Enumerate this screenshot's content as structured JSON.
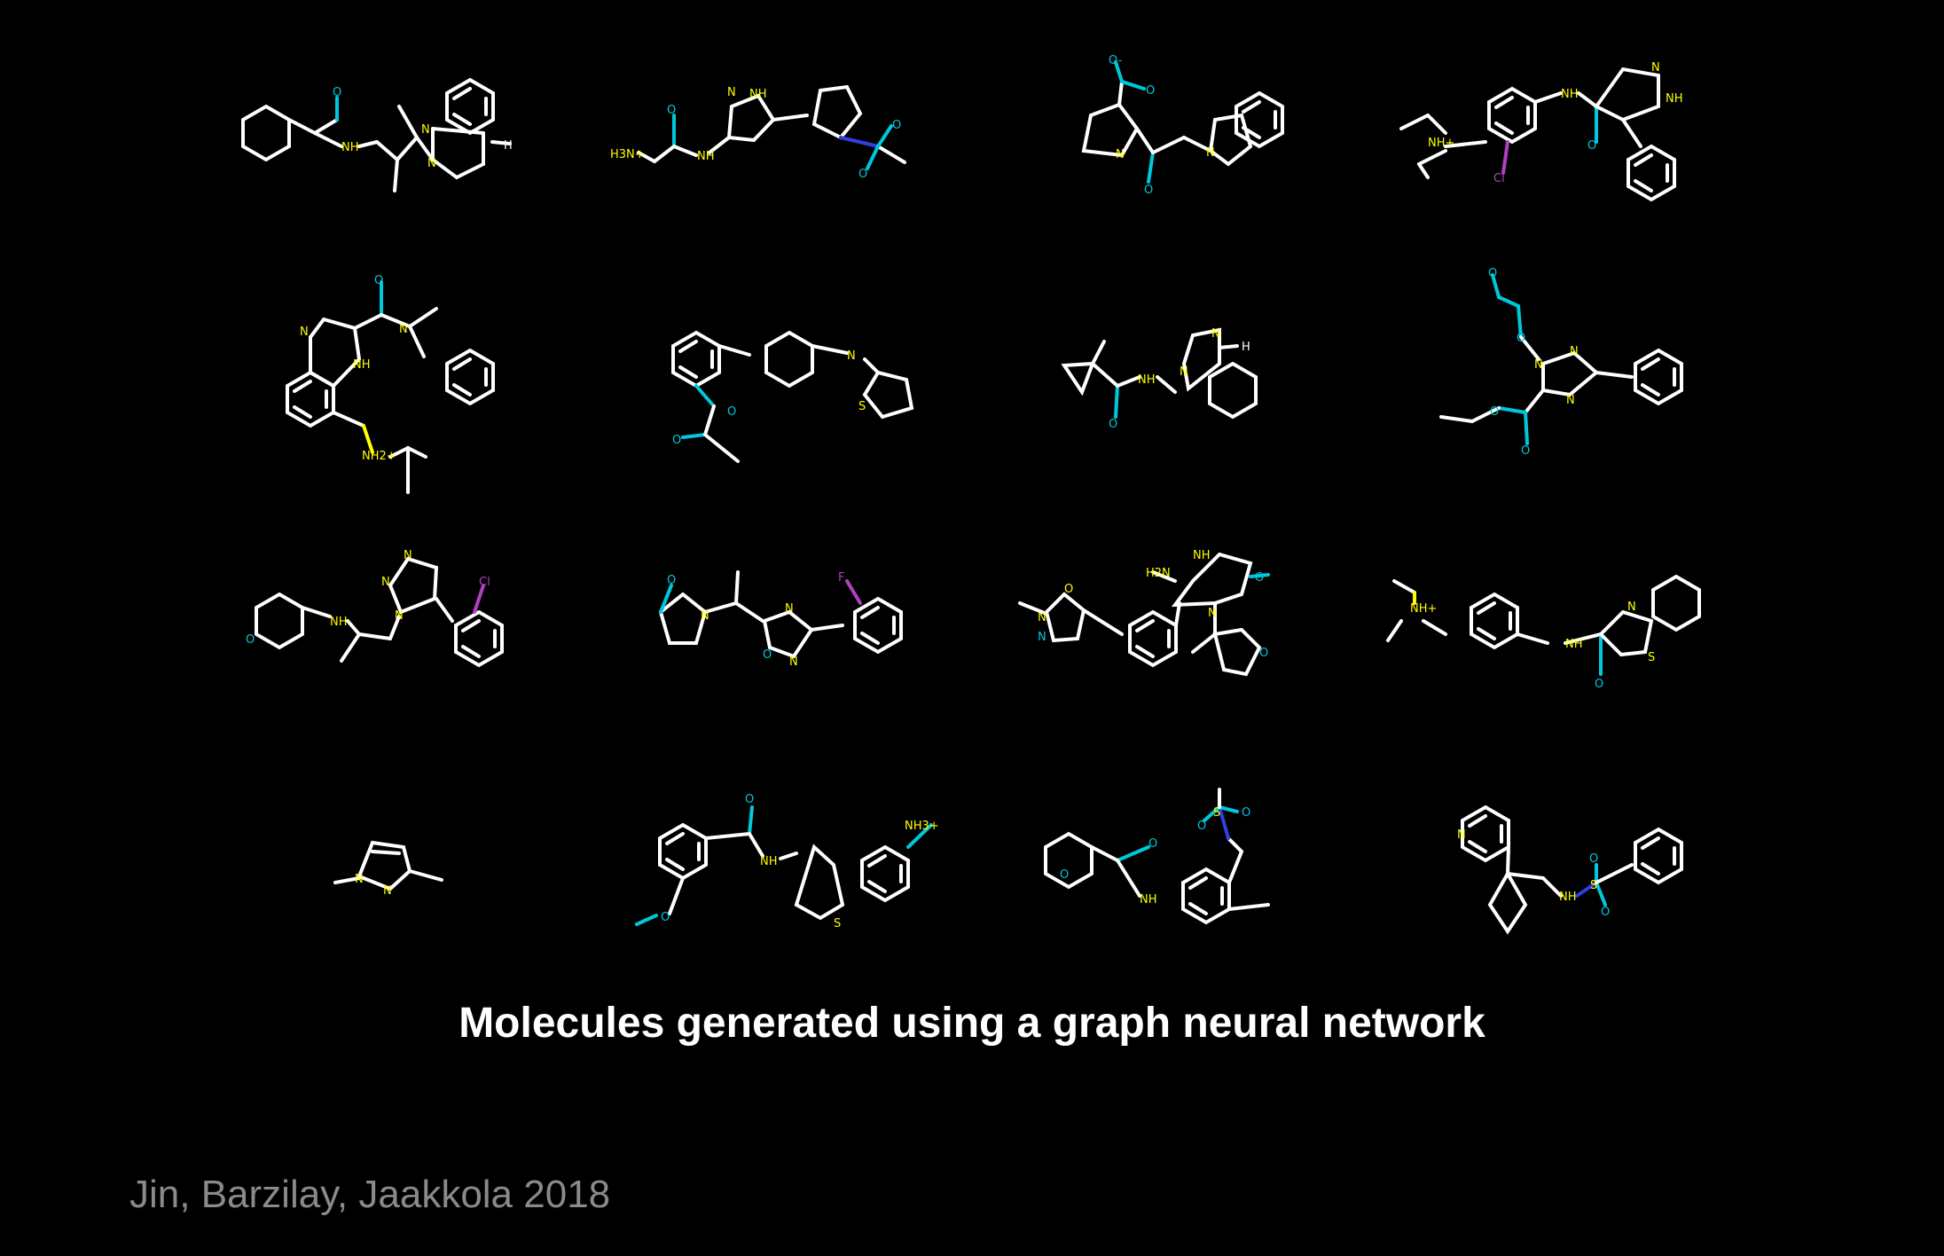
{
  "caption": "Molecules generated using a graph neural network",
  "credit": "Jin, Barzilay, Jaakkola 2018",
  "colors": {
    "background": "#000000",
    "bond": "#ffffff",
    "N": "#ffff00",
    "O": "#00c8dc",
    "S": "#ffff00",
    "Cl": "#b040c0",
    "F": "#b040c0",
    "sulfone": "#3040e0"
  },
  "molecules": [
    {
      "id": "m1",
      "labels": [
        "O",
        "NH",
        "N",
        "N",
        "H"
      ]
    },
    {
      "id": "m2",
      "labels": [
        "H3N+",
        "O",
        "NH",
        "NH",
        "N",
        "O",
        "O"
      ]
    },
    {
      "id": "m3",
      "labels": [
        "O-",
        "O",
        "N",
        "O",
        "N"
      ]
    },
    {
      "id": "m4",
      "labels": [
        "NH+",
        "Cl",
        "NH",
        "O",
        "N",
        "NH"
      ]
    },
    {
      "id": "m5",
      "labels": [
        "O",
        "N",
        "N",
        "NH",
        "NH2+"
      ]
    },
    {
      "id": "m6",
      "labels": [
        "N",
        "S",
        "O",
        "O"
      ]
    },
    {
      "id": "m7",
      "labels": [
        "N",
        "N",
        "H",
        "O",
        "NH"
      ]
    },
    {
      "id": "m8",
      "labels": [
        "O",
        "O",
        "N",
        "N",
        "N",
        "O",
        "O"
      ]
    },
    {
      "id": "m9",
      "labels": [
        "O",
        "NH",
        "N",
        "N",
        "N",
        "Cl"
      ]
    },
    {
      "id": "m10",
      "labels": [
        "O",
        "N",
        "N",
        "N",
        "O",
        "F"
      ]
    },
    {
      "id": "m11",
      "labels": [
        "N",
        "N",
        "O",
        "H2N",
        "NH",
        "O",
        "N",
        "O"
      ]
    },
    {
      "id": "m12",
      "labels": [
        "NH+",
        "NH",
        "O",
        "N",
        "S"
      ]
    },
    {
      "id": "m13",
      "labels": [
        "N",
        "N"
      ]
    },
    {
      "id": "m14",
      "labels": [
        "O",
        "NH",
        "O",
        "NH3+",
        "S"
      ]
    },
    {
      "id": "m15",
      "labels": [
        "O",
        "O",
        "NH",
        "S",
        "O",
        "O"
      ]
    },
    {
      "id": "m16",
      "labels": [
        "N",
        "NH",
        "S",
        "O",
        "O"
      ]
    }
  ]
}
